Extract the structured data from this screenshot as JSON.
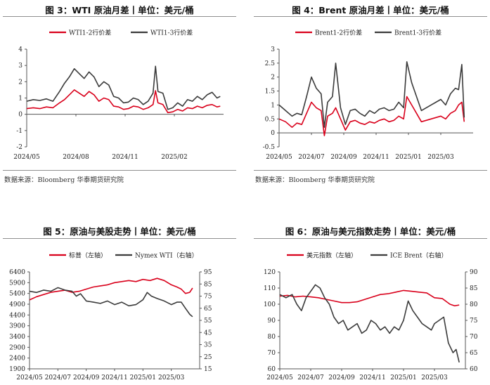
{
  "panels": [
    {
      "title": "图 3：WTI 原油月差丨单位：美元/桶",
      "source": "数据来源：Bloomberg 华泰期货研究院"
    },
    {
      "title": "图 4：Brent 原油月差丨单位：美元/桶",
      "source": "数据来源：Bloomberg 华泰期货研究院"
    },
    {
      "title": "图 5：原油与美股走势丨单位：美元/桶",
      "source": ""
    },
    {
      "title": "图 6：原油与美元指数走势丨单位：美元/桶",
      "source": ""
    }
  ],
  "colors": {
    "red": "#d9001b",
    "dark": "#3b3b3b"
  },
  "chart_data": [
    {
      "type": "line",
      "x_ticks": [
        "2024/05",
        "2024/08",
        "2024/11",
        "2025/02"
      ],
      "x_range": [
        0,
        12
      ],
      "x_tick_positions": [
        0,
        3,
        6,
        9
      ],
      "ylim": [
        -2,
        4
      ],
      "y_ticks": [
        "-2",
        "-1",
        "0",
        "1",
        "2",
        "3",
        "4"
      ],
      "legend_position": "top",
      "series": [
        {
          "name": "WTI1-2行价差",
          "color": "#d9001b",
          "x": [
            0,
            0.4,
            0.8,
            1.2,
            1.6,
            2.0,
            2.3,
            2.6,
            2.9,
            3.2,
            3.5,
            3.8,
            4.1,
            4.4,
            4.7,
            5.0,
            5.3,
            5.6,
            5.9,
            6.2,
            6.5,
            6.8,
            7.1,
            7.4,
            7.7,
            7.85,
            8.0,
            8.3,
            8.6,
            8.9,
            9.2,
            9.5,
            9.8,
            10.1,
            10.4,
            10.7,
            11.0,
            11.3,
            11.6,
            11.8
          ],
          "y": [
            0.35,
            0.4,
            0.35,
            0.45,
            0.4,
            0.7,
            0.9,
            1.2,
            1.5,
            1.3,
            1.1,
            1.4,
            1.2,
            0.8,
            1.0,
            0.9,
            0.5,
            0.45,
            0.3,
            0.35,
            0.5,
            0.45,
            0.3,
            0.4,
            0.6,
            1.45,
            0.7,
            0.6,
            0.1,
            0.15,
            0.3,
            0.2,
            0.4,
            0.35,
            0.5,
            0.4,
            0.55,
            0.6,
            0.45,
            0.5
          ]
        },
        {
          "name": "WTI1-3行价差",
          "color": "#3b3b3b",
          "x": [
            0,
            0.4,
            0.8,
            1.2,
            1.6,
            2.0,
            2.3,
            2.6,
            2.9,
            3.2,
            3.5,
            3.8,
            4.1,
            4.4,
            4.7,
            5.0,
            5.3,
            5.6,
            5.9,
            6.2,
            6.5,
            6.8,
            7.1,
            7.4,
            7.7,
            7.85,
            8.0,
            8.3,
            8.6,
            8.9,
            9.2,
            9.5,
            9.8,
            10.1,
            10.4,
            10.7,
            11.0,
            11.3,
            11.6,
            11.8
          ],
          "y": [
            0.8,
            0.9,
            0.85,
            0.95,
            0.8,
            1.4,
            1.9,
            2.3,
            2.8,
            2.5,
            2.2,
            2.6,
            2.3,
            1.7,
            2.0,
            1.8,
            1.1,
            1.0,
            0.7,
            0.75,
            1.0,
            0.9,
            0.6,
            0.8,
            1.3,
            2.95,
            1.4,
            1.3,
            0.3,
            0.4,
            0.7,
            0.5,
            0.9,
            0.8,
            1.1,
            0.9,
            1.2,
            1.35,
            1.0,
            1.1
          ]
        }
      ]
    },
    {
      "type": "line",
      "x_ticks": [
        "2024/05",
        "2024/07",
        "2024/09",
        "2024/11",
        "2025/01",
        "2025/03"
      ],
      "x_range": [
        0,
        12
      ],
      "x_tick_positions": [
        0,
        2,
        4,
        6,
        8,
        10
      ],
      "ylim": [
        -0.5,
        3
      ],
      "y_ticks": [
        "-0.5",
        "0",
        "0.5",
        "1",
        "1.5",
        "2",
        "2.5",
        "3"
      ],
      "legend_position": "top",
      "series": [
        {
          "name": "Brent1-2行价差",
          "color": "#d9001b",
          "x": [
            0,
            0.4,
            0.8,
            1.1,
            1.4,
            1.7,
            2.0,
            2.3,
            2.6,
            2.8,
            3.0,
            3.3,
            3.5,
            3.8,
            4.1,
            4.4,
            4.7,
            5.0,
            5.3,
            5.6,
            5.9,
            6.2,
            6.5,
            6.8,
            7.1,
            7.4,
            7.7,
            7.9,
            8.2,
            8.5,
            8.8,
            9.1,
            9.4,
            9.7,
            10.0,
            10.3,
            10.6,
            10.9,
            11.1,
            11.3,
            11.45
          ],
          "y": [
            0.5,
            0.4,
            0.2,
            0.35,
            0.3,
            0.7,
            1.1,
            0.9,
            0.8,
            -0.1,
            0.6,
            0.7,
            0.9,
            0.5,
            0.1,
            0.4,
            0.45,
            0.35,
            0.3,
            0.4,
            0.35,
            0.45,
            0.5,
            0.4,
            0.45,
            0.6,
            0.5,
            1.3,
            1.0,
            0.7,
            0.4,
            0.45,
            0.5,
            0.55,
            0.6,
            0.5,
            0.7,
            0.8,
            1.0,
            1.1,
            0.4
          ]
        },
        {
          "name": "Brent1-3行价差",
          "color": "#3b3b3b",
          "x": [
            0,
            0.4,
            0.8,
            1.1,
            1.4,
            1.7,
            2.0,
            2.3,
            2.6,
            2.8,
            3.0,
            3.3,
            3.5,
            3.8,
            4.1,
            4.4,
            4.7,
            5.0,
            5.3,
            5.6,
            5.9,
            6.2,
            6.5,
            6.8,
            7.1,
            7.4,
            7.7,
            7.9,
            8.2,
            8.5,
            8.8,
            9.1,
            9.4,
            9.7,
            10.0,
            10.3,
            10.6,
            10.9,
            11.1,
            11.3,
            11.45
          ],
          "y": [
            1.0,
            0.8,
            0.6,
            0.7,
            0.65,
            1.3,
            2.0,
            1.6,
            1.4,
            0.2,
            1.1,
            1.3,
            2.5,
            0.9,
            0.3,
            0.8,
            0.85,
            0.7,
            0.6,
            0.8,
            0.7,
            0.85,
            0.9,
            0.8,
            0.85,
            1.1,
            0.9,
            2.55,
            1.8,
            1.3,
            0.8,
            0.9,
            1.0,
            1.1,
            1.2,
            1.0,
            1.4,
            1.6,
            1.55,
            2.45,
            0.55
          ]
        }
      ]
    },
    {
      "type": "line",
      "x_ticks": [
        "2024/05",
        "2024/07",
        "2024/09",
        "2024/11",
        "2025/01",
        "2025/03"
      ],
      "x_range": [
        0,
        12
      ],
      "x_tick_positions": [
        0,
        2,
        4,
        6,
        8,
        10
      ],
      "ylim": [
        1900,
        6400
      ],
      "ylim_right": [
        15,
        95
      ],
      "y_ticks": [
        "1900",
        "2400",
        "2900",
        "3400",
        "3900",
        "4400",
        "4900",
        "5400",
        "5900",
        "6400"
      ],
      "y_ticks_right": [
        "15",
        "25",
        "35",
        "45",
        "55",
        "65",
        "75",
        "85",
        "95"
      ],
      "legend_position": "top",
      "series": [
        {
          "name": "标普（左轴）",
          "axis": "left",
          "color": "#d9001b",
          "x": [
            0,
            0.5,
            1.0,
            1.5,
            2.0,
            2.5,
            3.0,
            3.5,
            4.0,
            4.5,
            5.0,
            5.5,
            6.0,
            6.5,
            7.0,
            7.5,
            8.0,
            8.5,
            9.0,
            9.5,
            10.0,
            10.4,
            10.7,
            11.0,
            11.3,
            11.5
          ],
          "y": [
            5100,
            5250,
            5350,
            5450,
            5500,
            5550,
            5450,
            5500,
            5600,
            5700,
            5750,
            5800,
            5900,
            5950,
            6000,
            5950,
            6050,
            6000,
            6100,
            6000,
            5800,
            5700,
            5600,
            5400,
            5450,
            5650
          ]
        },
        {
          "name": "Nymex WTI（右轴）",
          "axis": "right",
          "color": "#3b3b3b",
          "x": [
            0,
            0.5,
            1.0,
            1.5,
            2.0,
            2.5,
            3.0,
            3.3,
            3.6,
            4.0,
            4.5,
            5.0,
            5.5,
            6.0,
            6.5,
            7.0,
            7.5,
            8.0,
            8.3,
            8.6,
            9.0,
            9.5,
            10.0,
            10.4,
            10.7,
            11.0,
            11.3,
            11.5
          ],
          "y": [
            79,
            78,
            80,
            79,
            82,
            80,
            79,
            75,
            77,
            71,
            70,
            69,
            71,
            68,
            70,
            67,
            68,
            72,
            78,
            75,
            73,
            71,
            68,
            70,
            70,
            65,
            60,
            58
          ]
        }
      ]
    },
    {
      "type": "line",
      "x_ticks": [
        "2024/05",
        "2024/07",
        "2024/09",
        "2024/11",
        "2025/01",
        "2025/03"
      ],
      "x_range": [
        0,
        12
      ],
      "x_tick_positions": [
        0,
        2,
        4,
        6,
        8,
        10
      ],
      "ylim": [
        60,
        120
      ],
      "ylim_right": [
        60,
        90
      ],
      "y_ticks": [
        "60",
        "70",
        "80",
        "90",
        "100",
        "110",
        "120"
      ],
      "y_ticks_right": [
        "60",
        "65",
        "70",
        "75",
        "80",
        "85",
        "90"
      ],
      "legend_position": "top",
      "series": [
        {
          "name": "美元指数（左轴）",
          "axis": "left",
          "color": "#d9001b",
          "x": [
            0,
            0.5,
            1.0,
            1.5,
            2.0,
            2.5,
            3.0,
            3.5,
            4.0,
            4.5,
            5.0,
            5.5,
            6.0,
            6.5,
            7.0,
            7.5,
            8.0,
            8.5,
            9.0,
            9.5,
            10.0,
            10.5,
            11.0,
            11.3,
            11.6
          ],
          "y": [
            105,
            105.5,
            104.5,
            105,
            104.5,
            104,
            103,
            102,
            101,
            101,
            101.5,
            103,
            104.5,
            106,
            106.5,
            107.5,
            108.5,
            108,
            107.5,
            107,
            104,
            103.5,
            100,
            99,
            99.5
          ]
        },
        {
          "name": "ICE Brent（右轴）",
          "axis": "right",
          "color": "#3b3b3b",
          "x": [
            0,
            0.4,
            0.8,
            1.1,
            1.4,
            1.7,
            2.0,
            2.3,
            2.6,
            2.9,
            3.2,
            3.5,
            3.8,
            4.1,
            4.4,
            4.7,
            5.0,
            5.3,
            5.6,
            5.9,
            6.2,
            6.5,
            6.8,
            7.1,
            7.4,
            7.7,
            8.0,
            8.3,
            8.6,
            8.9,
            9.2,
            9.5,
            9.8,
            10.0,
            10.3,
            10.6,
            10.9,
            11.2,
            11.4,
            11.6
          ],
          "y": [
            83,
            82,
            83,
            80,
            78,
            82,
            84,
            86,
            85,
            82,
            80,
            76,
            74,
            75,
            72,
            73,
            74,
            71,
            72,
            75,
            74,
            72,
            73,
            71,
            73,
            72,
            75,
            81,
            78,
            76,
            74,
            73,
            72,
            74,
            75,
            76,
            68,
            65,
            66,
            62
          ]
        }
      ]
    }
  ]
}
